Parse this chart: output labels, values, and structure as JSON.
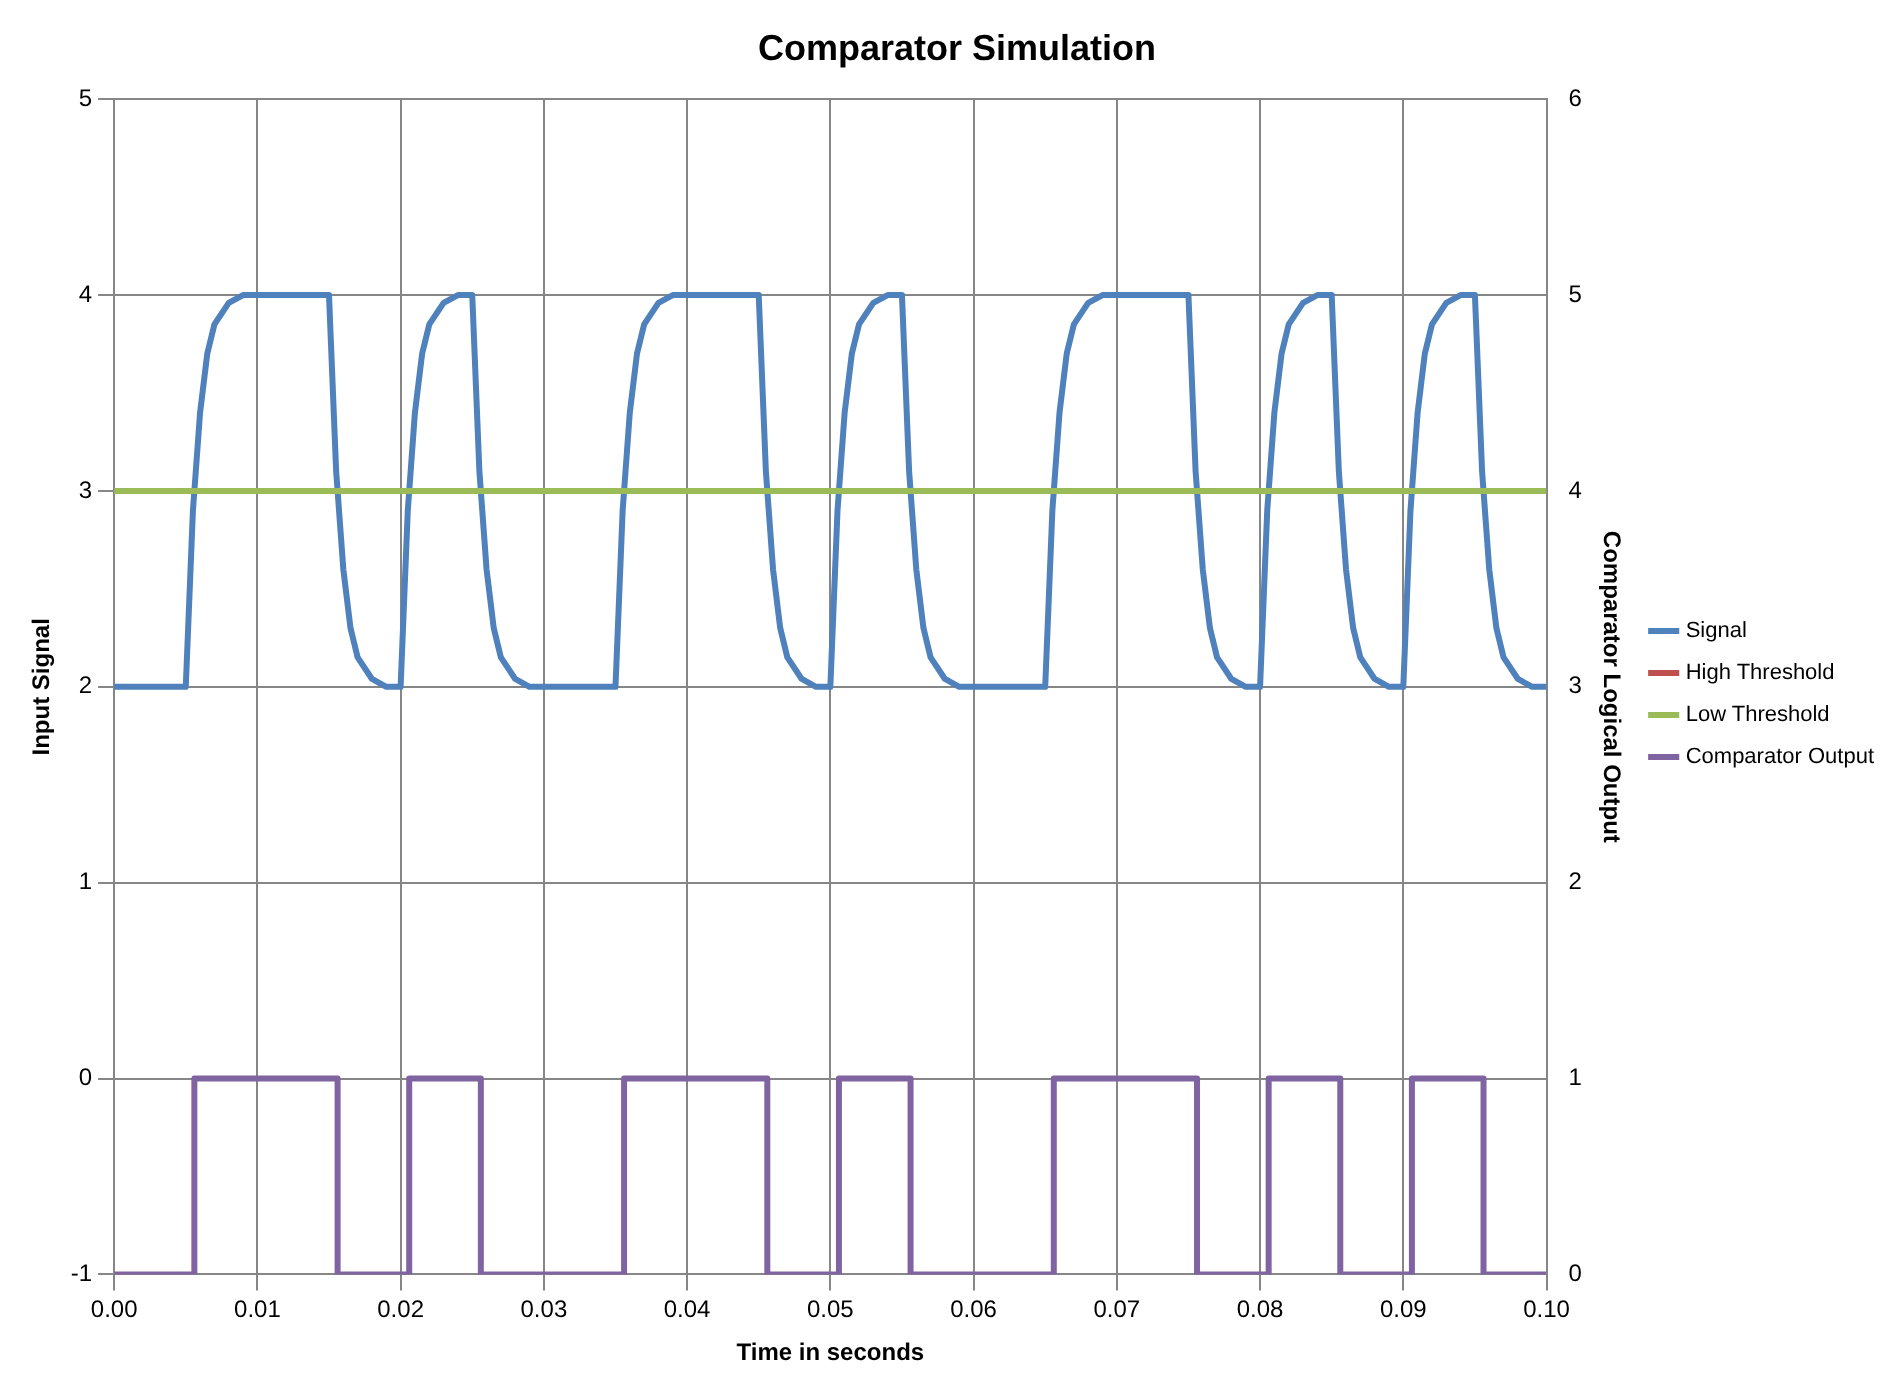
{
  "chart_data": {
    "type": "line",
    "title": "Comparator Simulation",
    "xlabel": "Time in seconds",
    "ylabel": "Input Signal",
    "y2label": "Comparator Logical Output",
    "xlim": [
      0,
      0.1
    ],
    "xticks": [
      {
        "value": 0,
        "label": "0.00"
      },
      {
        "value": 0.01,
        "label": "0.01"
      },
      {
        "value": 0.02,
        "label": "0.02"
      },
      {
        "value": 0.03,
        "label": "0.03"
      },
      {
        "value": 0.04,
        "label": "0.04"
      },
      {
        "value": 0.05,
        "label": "0.05"
      },
      {
        "value": 0.06,
        "label": "0.06"
      },
      {
        "value": 0.07,
        "label": "0.07"
      },
      {
        "value": 0.08,
        "label": "0.08"
      },
      {
        "value": 0.09,
        "label": "0.09"
      },
      {
        "value": 0.1,
        "label": "0.10"
      }
    ],
    "ylim": [
      -1,
      5
    ],
    "yticks": [
      -1,
      0,
      1,
      2,
      3,
      4,
      5
    ],
    "y2lim": [
      0,
      6
    ],
    "y2ticks": [
      0,
      1,
      2,
      3,
      4,
      5,
      6
    ],
    "grid": true,
    "legend": "right",
    "marker": "none",
    "line_style": "solid",
    "series": [
      {
        "name": "Signal",
        "color": "#4f81bd",
        "type": "line",
        "x": [
          0,
          0.005,
          0.0055,
          0.006,
          0.0065,
          0.007,
          0.008,
          0.009,
          0.015,
          0.0155,
          0.016,
          0.0165,
          0.017,
          0.018,
          0.019,
          0.02,
          0.0205,
          0.021,
          0.0215,
          0.022,
          0.023,
          0.024,
          0.025,
          0.0255,
          0.026,
          0.0265,
          0.027,
          0.028,
          0.029,
          0.035,
          0.0355,
          0.036,
          0.0365,
          0.037,
          0.038,
          0.039,
          0.045,
          0.0455,
          0.046,
          0.0465,
          0.047,
          0.048,
          0.049,
          0.05,
          0.0505,
          0.051,
          0.0515,
          0.052,
          0.053,
          0.054,
          0.055,
          0.0555,
          0.056,
          0.0565,
          0.057,
          0.058,
          0.059,
          0.065,
          0.0655,
          0.066,
          0.0665,
          0.067,
          0.068,
          0.069,
          0.075,
          0.0755,
          0.076,
          0.0765,
          0.077,
          0.078,
          0.079,
          0.08,
          0.0805,
          0.081,
          0.0815,
          0.082,
          0.083,
          0.084,
          0.085,
          0.0855,
          0.086,
          0.0865,
          0.087,
          0.088,
          0.089,
          0.09,
          0.0905,
          0.091,
          0.0915,
          0.092,
          0.093,
          0.094,
          0.095,
          0.0955,
          0.096,
          0.0965,
          0.097,
          0.098,
          0.099,
          0.1
        ],
        "values": [
          2,
          2,
          2.9,
          3.4,
          3.7,
          3.85,
          3.96,
          4,
          4,
          3.1,
          2.6,
          2.3,
          2.15,
          2.04,
          2,
          2,
          2.9,
          3.4,
          3.7,
          3.85,
          3.96,
          4,
          4,
          3.1,
          2.6,
          2.3,
          2.15,
          2.04,
          2,
          2,
          2.9,
          3.4,
          3.7,
          3.85,
          3.96,
          4,
          4,
          3.1,
          2.6,
          2.3,
          2.15,
          2.04,
          2,
          2,
          2.9,
          3.4,
          3.7,
          3.85,
          3.96,
          4,
          4,
          3.1,
          2.6,
          2.3,
          2.15,
          2.04,
          2,
          2,
          2.9,
          3.4,
          3.7,
          3.85,
          3.96,
          4,
          4,
          3.1,
          2.6,
          2.3,
          2.15,
          2.04,
          2,
          2,
          2.9,
          3.4,
          3.7,
          3.85,
          3.96,
          4,
          4,
          3.1,
          2.6,
          2.3,
          2.15,
          2.04,
          2,
          2,
          2.9,
          3.4,
          3.7,
          3.85,
          3.96,
          4,
          4,
          3.1,
          2.6,
          2.3,
          2.15,
          2.04,
          2,
          2
        ]
      },
      {
        "name": "High Threshold",
        "color": "#c0504d",
        "type": "line",
        "values": [
          null,
          null
        ]
      },
      {
        "name": "Low Threshold",
        "color": "#9bbb59",
        "type": "line",
        "x": [
          0,
          0.1
        ],
        "values": [
          3,
          3
        ]
      },
      {
        "name": "Comparator Output",
        "color": "#8064a2",
        "type": "step",
        "axis": "y2",
        "x": [
          0,
          0.0056,
          0.0156,
          0.0206,
          0.0256,
          0.0356,
          0.0456,
          0.0506,
          0.0556,
          0.0656,
          0.0756,
          0.0806,
          0.0856,
          0.0906,
          0.0956,
          0.1
        ],
        "values": [
          0,
          1,
          0,
          1,
          0,
          1,
          0,
          1,
          0,
          1,
          0,
          1,
          0,
          1,
          0,
          0
        ]
      }
    ]
  }
}
